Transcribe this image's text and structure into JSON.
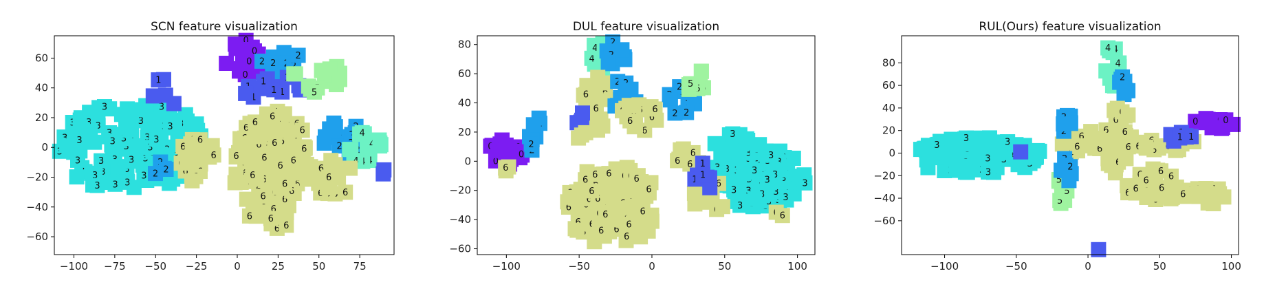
{
  "palette": {
    "0": "#7c1cf2",
    "1": "#4a5bef",
    "2": "#1fa0ec",
    "3": "#2ce0de",
    "4": "#6cf2c4",
    "5": "#9ff3a0",
    "6": "#d4dc8a"
  },
  "chart_data": [
    {
      "type": "scatter",
      "title": "SCN feature visualization",
      "xlim": [
        -112,
        96
      ],
      "ylim": [
        -72,
        75
      ],
      "xticks": [
        -100,
        -75,
        -50,
        -25,
        0,
        25,
        50,
        75
      ],
      "yticks": [
        -60,
        -40,
        -20,
        0,
        20,
        40,
        60
      ],
      "grid": false,
      "clusters": [
        {
          "label": 3,
          "cx": -65,
          "cy": 0,
          "rx": 45,
          "ry": 30,
          "n": 130
        },
        {
          "label": 3,
          "cx": -40,
          "cy": 5,
          "rx": 18,
          "ry": 24,
          "n": 30
        },
        {
          "label": 0,
          "cx": 4,
          "cy": 60,
          "rx": 12,
          "ry": 12,
          "n": 22
        },
        {
          "label": 2,
          "cx": 25,
          "cy": 58,
          "rx": 14,
          "ry": 9,
          "n": 14
        },
        {
          "label": 1,
          "cx": 22,
          "cy": 40,
          "rx": 22,
          "ry": 8,
          "n": 14
        },
        {
          "label": 5,
          "cx": 50,
          "cy": 47,
          "rx": 16,
          "ry": 10,
          "n": 16
        },
        {
          "label": 6,
          "cx": 22,
          "cy": -15,
          "rx": 24,
          "ry": 40,
          "n": 150
        },
        {
          "label": 6,
          "cx": -23,
          "cy": -8,
          "rx": 14,
          "ry": 16,
          "n": 25
        },
        {
          "label": 2,
          "cx": 65,
          "cy": 3,
          "rx": 13,
          "ry": 16,
          "n": 20
        },
        {
          "label": 4,
          "cx": 78,
          "cy": 0,
          "rx": 12,
          "ry": 12,
          "n": 18
        },
        {
          "label": 2,
          "cx": -45,
          "cy": -15,
          "rx": 6,
          "ry": 6,
          "n": 4
        },
        {
          "label": 1,
          "cx": -44,
          "cy": 30,
          "rx": 8,
          "ry": 20,
          "n": 5
        },
        {
          "label": 6,
          "cx": 60,
          "cy": -20,
          "rx": 14,
          "ry": 14,
          "n": 22
        },
        {
          "label": 1,
          "cx": 88,
          "cy": -17,
          "rx": 3,
          "ry": 3,
          "n": 2
        }
      ]
    },
    {
      "type": "scatter",
      "title": "DUL feature visualization",
      "xlim": [
        -120,
        112
      ],
      "ylim": [
        -64,
        86
      ],
      "xticks": [
        -100,
        -50,
        0,
        50,
        100
      ],
      "yticks": [
        -60,
        -40,
        -20,
        0,
        20,
        40,
        60,
        80
      ],
      "grid": false,
      "clusters": [
        {
          "label": 0,
          "cx": -100,
          "cy": 5,
          "rx": 14,
          "ry": 10,
          "n": 18
        },
        {
          "label": 2,
          "cx": -80,
          "cy": 18,
          "rx": 5,
          "ry": 14,
          "n": 8
        },
        {
          "label": 6,
          "cx": -95,
          "cy": -3,
          "rx": 10,
          "ry": 5,
          "n": 4
        },
        {
          "label": 4,
          "cx": -38,
          "cy": 72,
          "rx": 10,
          "ry": 10,
          "n": 20
        },
        {
          "label": 2,
          "cx": -25,
          "cy": 72,
          "rx": 8,
          "ry": 10,
          "n": 10
        },
        {
          "label": 6,
          "cx": -38,
          "cy": 40,
          "rx": 10,
          "ry": 20,
          "n": 22
        },
        {
          "label": 2,
          "cx": -20,
          "cy": 45,
          "rx": 10,
          "ry": 12,
          "n": 14
        },
        {
          "label": 6,
          "cx": -8,
          "cy": 30,
          "rx": 14,
          "ry": 10,
          "n": 18
        },
        {
          "label": 2,
          "cx": 20,
          "cy": 42,
          "rx": 10,
          "ry": 10,
          "n": 10
        },
        {
          "label": 5,
          "cx": 30,
          "cy": 55,
          "rx": 8,
          "ry": 8,
          "n": 8
        },
        {
          "label": 1,
          "cx": -48,
          "cy": 28,
          "rx": 4,
          "ry": 6,
          "n": 4
        },
        {
          "label": 6,
          "cx": -48,
          "cy": 18,
          "rx": 4,
          "ry": 4,
          "n": 3
        },
        {
          "label": 6,
          "cx": -27,
          "cy": -30,
          "rx": 32,
          "ry": 28,
          "n": 110
        },
        {
          "label": 6,
          "cx": 25,
          "cy": 3,
          "rx": 10,
          "ry": 6,
          "n": 8
        },
        {
          "label": 3,
          "cx": 72,
          "cy": -10,
          "rx": 35,
          "ry": 22,
          "n": 110
        },
        {
          "label": 3,
          "cx": 55,
          "cy": 12,
          "rx": 12,
          "ry": 8,
          "n": 14
        },
        {
          "label": 6,
          "cx": 40,
          "cy": -25,
          "rx": 12,
          "ry": 12,
          "n": 10
        },
        {
          "label": 6,
          "cx": 88,
          "cy": -37,
          "rx": 4,
          "ry": 4,
          "n": 2
        },
        {
          "label": 1,
          "cx": 35,
          "cy": -12,
          "rx": 6,
          "ry": 12,
          "n": 8
        }
      ]
    },
    {
      "type": "scatter",
      "title": "RUL(Ours) feature visualization",
      "xlim": [
        -130,
        105
      ],
      "ylim": [
        -90,
        104
      ],
      "xticks": [
        -100,
        -50,
        0,
        50,
        100
      ],
      "yticks": [
        -60,
        -40,
        -20,
        0,
        20,
        40,
        60,
        80
      ],
      "grid": false,
      "clusters": [
        {
          "label": 3,
          "cx": -78,
          "cy": -2,
          "rx": 46,
          "ry": 16,
          "n": 120
        },
        {
          "label": 4,
          "cx": 17,
          "cy": 78,
          "rx": 5,
          "ry": 20,
          "n": 16
        },
        {
          "label": 2,
          "cx": 25,
          "cy": 62,
          "rx": 4,
          "ry": 10,
          "n": 8
        },
        {
          "label": 6,
          "cx": 22,
          "cy": 10,
          "rx": 10,
          "ry": 32,
          "n": 40
        },
        {
          "label": 6,
          "cx": -5,
          "cy": 10,
          "rx": 18,
          "ry": 10,
          "n": 20
        },
        {
          "label": 6,
          "cx": 45,
          "cy": -28,
          "rx": 20,
          "ry": 14,
          "n": 30
        },
        {
          "label": 6,
          "cx": 78,
          "cy": -38,
          "rx": 22,
          "ry": 8,
          "n": 22
        },
        {
          "label": 6,
          "cx": 55,
          "cy": 8,
          "rx": 22,
          "ry": 6,
          "n": 18
        },
        {
          "label": 0,
          "cx": 88,
          "cy": 26,
          "rx": 14,
          "ry": 6,
          "n": 12
        },
        {
          "label": 1,
          "cx": 64,
          "cy": 15,
          "rx": 10,
          "ry": 5,
          "n": 8
        },
        {
          "label": 1,
          "cx": -48,
          "cy": 0,
          "rx": 2,
          "ry": 2,
          "n": 1
        },
        {
          "label": 2,
          "cx": -15,
          "cy": 24,
          "rx": 8,
          "ry": 10,
          "n": 10
        },
        {
          "label": 5,
          "cx": -18,
          "cy": -35,
          "rx": 4,
          "ry": 14,
          "n": 8
        },
        {
          "label": 2,
          "cx": -15,
          "cy": -15,
          "rx": 5,
          "ry": 12,
          "n": 8
        },
        {
          "label": 1,
          "cx": 8,
          "cy": -84,
          "rx": 2,
          "ry": 2,
          "n": 1
        }
      ]
    }
  ]
}
